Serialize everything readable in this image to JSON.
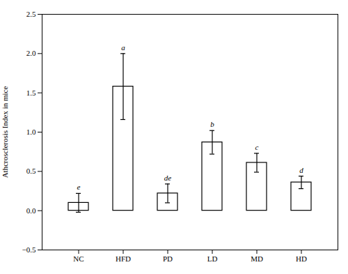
{
  "chart_data": {
    "type": "bar",
    "categories": [
      "NC",
      "HFD",
      "PD",
      "LD",
      "MD",
      "HD"
    ],
    "values": [
      0.1,
      1.58,
      0.22,
      0.87,
      0.61,
      0.36
    ],
    "errors": [
      0.12,
      0.42,
      0.12,
      0.15,
      0.12,
      0.08
    ],
    "significance_labels": [
      "e",
      "a",
      "de",
      "b",
      "c",
      "d"
    ],
    "color": "#ffffff",
    "ylabel": "Athcrosclerosis Index in mice",
    "ylim": [
      -0.5,
      2.5
    ],
    "yticks": [
      {
        "value": -0.5,
        "label": "−0.5"
      },
      {
        "value": 0,
        "label": "0.0"
      },
      0.5,
      {
        "value": 1,
        "label": "1.0"
      },
      1.5,
      {
        "value": 2,
        "label": "2.0"
      },
      2.5
    ],
    "grid": false
  }
}
